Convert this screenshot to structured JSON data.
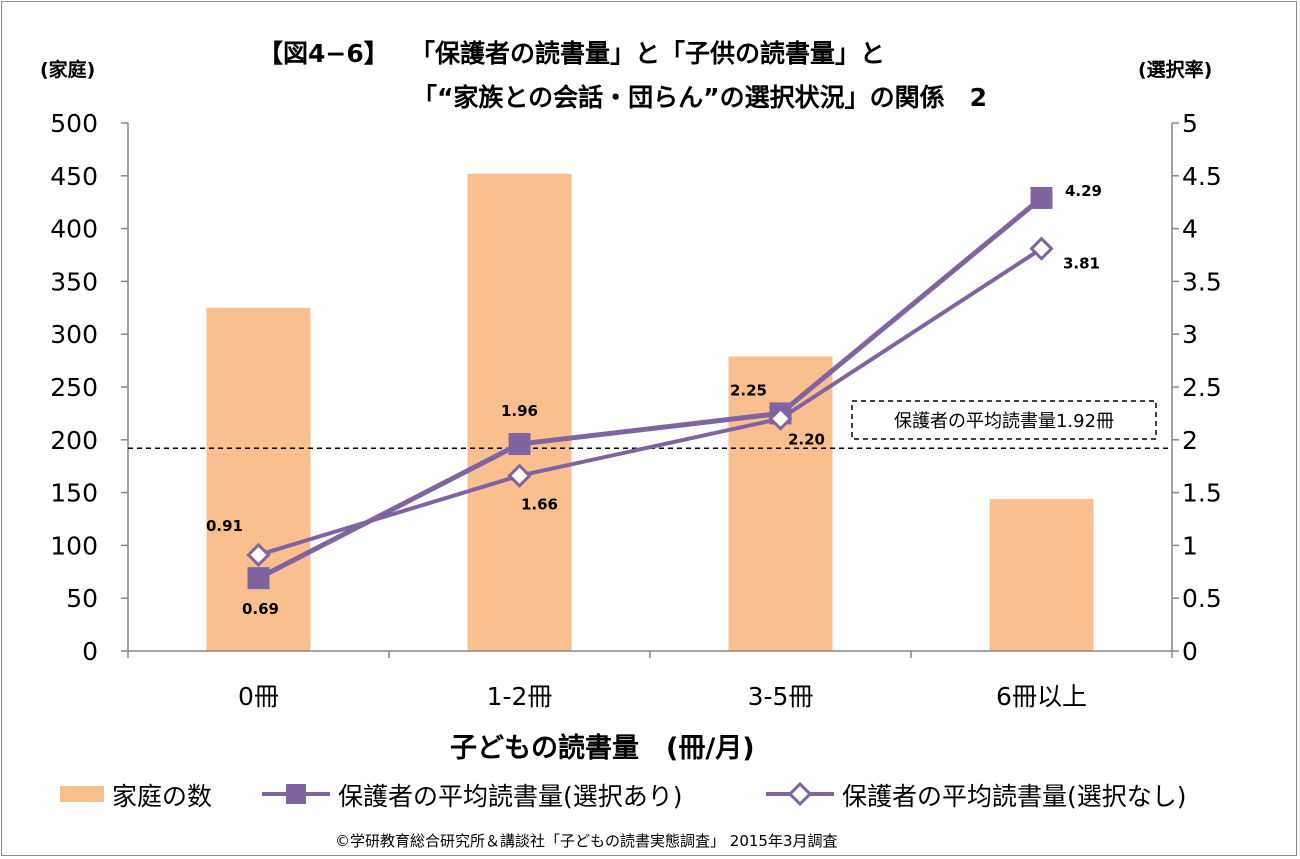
{
  "chart_data": {
    "type": "bar+line",
    "title_line1": "【図4−6】　 「保護者の読書量」と「子供の読書量」と",
    "title_line2": "「“家族との会話・団らん”の選択状況」の関係　2",
    "y_left_label": "(家庭)",
    "y_right_label": "(選択率)",
    "xlabel": "子どもの読書量　(冊/月)",
    "categories": [
      "0冊",
      "1-2冊",
      "3-5冊",
      "6冊以上"
    ],
    "y_left": {
      "min": 0,
      "max": 500,
      "step": 50,
      "ticks": [
        "0",
        "50",
        "100",
        "150",
        "200",
        "250",
        "300",
        "350",
        "400",
        "450",
        "500"
      ]
    },
    "y_right": {
      "min": 0,
      "max": 5,
      "step": 0.5,
      "ticks": [
        "0",
        "0.5",
        "1",
        "1.5",
        "2",
        "2.5",
        "3",
        "3.5",
        "4",
        "4.5",
        "5"
      ]
    },
    "series": [
      {
        "name": "家庭の数",
        "type": "bar",
        "axis": "left",
        "color": "#f9bf8f",
        "values": [
          325,
          452,
          279,
          144
        ]
      },
      {
        "name": "保護者の平均読書量(選択あり)",
        "type": "line",
        "axis": "right",
        "color": "#8064a2",
        "marker": "square",
        "values": [
          0.69,
          1.96,
          2.25,
          4.29
        ],
        "labels": [
          "0.69",
          "1.96",
          "2.25",
          "4.29"
        ]
      },
      {
        "name": "保護者の平均読書量(選択なし)",
        "type": "line",
        "axis": "right",
        "color": "#8064a2",
        "marker": "diamond-open",
        "values": [
          0.91,
          1.66,
          2.2,
          3.81
        ],
        "labels": [
          "0.91",
          "1.66",
          "2.20",
          "3.81"
        ]
      }
    ],
    "reference_line": {
      "value": 1.92,
      "axis": "right",
      "label": "保護者の平均読書量1.92冊"
    },
    "legend_position": "bottom",
    "grid": false
  },
  "source_note": "©学研教育総合研究所＆講談社「子どもの読書実態調査」 2015年3月調査"
}
